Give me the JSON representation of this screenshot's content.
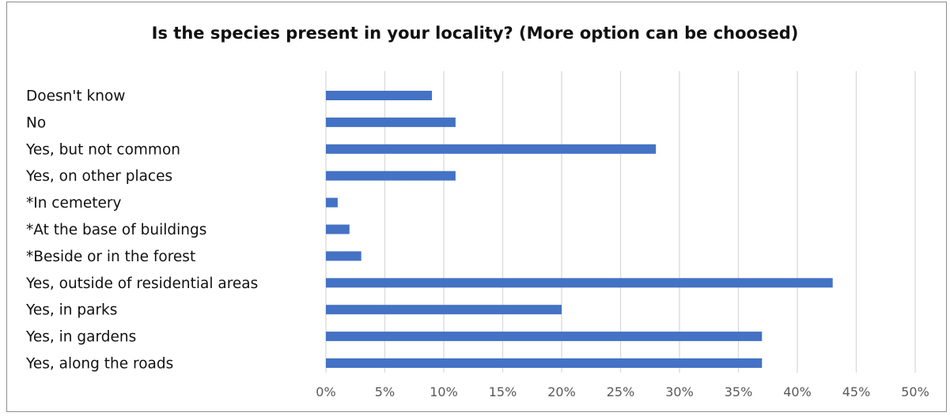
{
  "chart_data": {
    "type": "bar",
    "orientation": "horizontal",
    "title": "Is the species present in your locality? (More option can be choosed)",
    "categories": [
      "Doesn't know",
      "No",
      "Yes, but not common",
      "Yes, on other places",
      "*In cemetery",
      "*At the base of buildings",
      "*Beside or in the forest",
      "Yes, outside of residential areas",
      "Yes, in parks",
      "Yes, in gardens",
      "Yes, along the roads"
    ],
    "values": [
      9,
      11,
      28,
      11,
      1,
      2,
      3,
      43,
      20,
      37,
      37
    ],
    "xlim": [
      0,
      50
    ],
    "xticks": [
      "0%",
      "5%",
      "10%",
      "15%",
      "20%",
      "25%",
      "30%",
      "35%",
      "40%",
      "45%",
      "50%"
    ],
    "grid": "vertical",
    "legend": "none",
    "bar_color": "#4472c4",
    "grid_color": "#d9d9d9"
  }
}
